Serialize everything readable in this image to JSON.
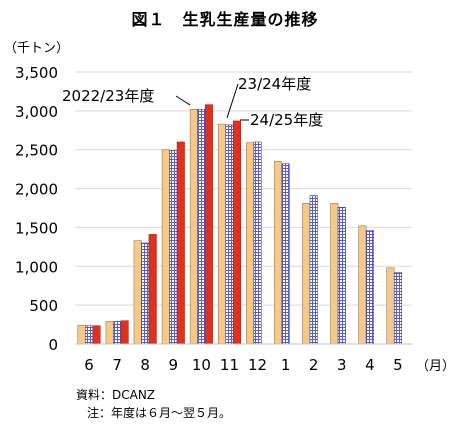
{
  "chart_data": {
    "type": "bar",
    "title": "図１　生乳生産量の推移",
    "ylabel": "（千トン）",
    "xlabel": "（月）",
    "ylim": [
      0,
      3500
    ],
    "yticks": [
      0,
      500,
      1000,
      1500,
      2000,
      2500,
      3000,
      3500
    ],
    "ytick_labels": [
      "0",
      "500",
      "1,000",
      "1,500",
      "2,000",
      "2,500",
      "3,000",
      "3,500"
    ],
    "categories": [
      "6",
      "7",
      "8",
      "9",
      "10",
      "11",
      "12",
      "1",
      "2",
      "3",
      "4",
      "5"
    ],
    "series": [
      {
        "name": "2022/23年度",
        "color": "#f5c98c",
        "values": [
          240,
          290,
          1330,
          2500,
          3020,
          2830,
          2590,
          2350,
          1810,
          1810,
          1520,
          980
        ]
      },
      {
        "name": "23/24年度",
        "color": "#5a5fc8",
        "values": [
          235,
          290,
          1300,
          2490,
          3020,
          2820,
          2600,
          2320,
          1910,
          1760,
          1460,
          920
        ]
      },
      {
        "name": "24/25年度",
        "color": "#e0301e",
        "values": [
          235,
          300,
          1410,
          2600,
          3080,
          2870,
          null,
          null,
          null,
          null,
          null,
          null
        ]
      }
    ],
    "grid": true,
    "legend": "annotations near bars"
  },
  "notes": {
    "source": "資料：DCANZ",
    "footnote": "注：年度は６月～翌５月。"
  }
}
